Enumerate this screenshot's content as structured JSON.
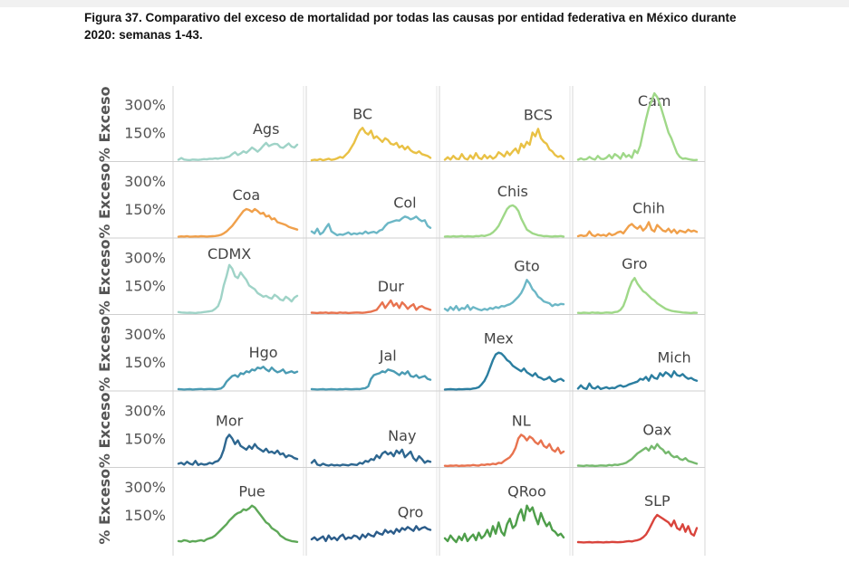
{
  "page": {
    "title": "Figura 37. Comparativo del exceso de mortalidad por todas las causas por entidad federativa en México durante\n2020: semanas 1-43."
  },
  "chart_data": {
    "type": "line",
    "layout": "small-multiples grid, 4 columns x 6 rows, shared axes",
    "ylabel": "% Exceso",
    "ytick_labels": [
      "300%",
      "150%"
    ],
    "yticks": [
      300,
      150
    ],
    "ylim": [
      0,
      380
    ],
    "xlim": [
      1,
      43
    ],
    "panels": [
      {
        "name": "Ags",
        "color": "#9fd3c7",
        "values": [
          5,
          14,
          6,
          4,
          3,
          6,
          5,
          4,
          6,
          8,
          7,
          10,
          9,
          12,
          10,
          14,
          13,
          18,
          22,
          35,
          45,
          30,
          38,
          50,
          42,
          55,
          70,
          60,
          48,
          62,
          80,
          95,
          78,
          85,
          90,
          88,
          72,
          68,
          80,
          92,
          75,
          70,
          85
        ]
      },
      {
        "name": "BC",
        "color": "#e9c145",
        "values": [
          2,
          5,
          3,
          8,
          2,
          6,
          10,
          4,
          7,
          12,
          20,
          15,
          30,
          45,
          70,
          95,
          130,
          160,
          175,
          150,
          140,
          160,
          120,
          130,
          115,
          100,
          120,
          110,
          90,
          85,
          95,
          70,
          80,
          60,
          75,
          55,
          45,
          40,
          50,
          35,
          30,
          25,
          15
        ]
      },
      {
        "name": "BCS",
        "color": "#e9c145",
        "values": [
          5,
          18,
          6,
          25,
          10,
          8,
          35,
          12,
          6,
          28,
          10,
          40,
          15,
          8,
          30,
          12,
          25,
          10,
          20,
          45,
          35,
          22,
          48,
          30,
          50,
          65,
          40,
          90,
          70,
          100,
          85,
          150,
          130,
          170,
          120,
          100,
          90,
          60,
          50,
          30,
          20,
          25,
          10
        ]
      },
      {
        "name": "Cam",
        "color": "#9fd888",
        "values": [
          5,
          12,
          6,
          8,
          20,
          10,
          6,
          25,
          10,
          8,
          15,
          30,
          12,
          35,
          25,
          10,
          40,
          20,
          30,
          15,
          55,
          40,
          80,
          150,
          220,
          280,
          320,
          360,
          340,
          300,
          250,
          200,
          150,
          120,
          80,
          40,
          20,
          10,
          12,
          8,
          5,
          3,
          4
        ]
      },
      {
        "name": "Coa",
        "color": "#f0a04b",
        "values": [
          2,
          4,
          3,
          5,
          2,
          3,
          4,
          3,
          5,
          4,
          3,
          4,
          5,
          6,
          8,
          12,
          20,
          30,
          45,
          60,
          80,
          100,
          120,
          140,
          150,
          145,
          135,
          150,
          140,
          125,
          130,
          110,
          115,
          95,
          100,
          80,
          75,
          70,
          65,
          55,
          50,
          45,
          40
        ]
      },
      {
        "name": "Col",
        "color": "#6cb7c6",
        "values": [
          30,
          20,
          45,
          15,
          25,
          50,
          70,
          30,
          20,
          10,
          15,
          12,
          18,
          25,
          14,
          20,
          16,
          22,
          18,
          30,
          20,
          25,
          28,
          22,
          35,
          40,
          60,
          75,
          80,
          85,
          90,
          88,
          100,
          110,
          105,
          95,
          100,
          110,
          95,
          85,
          90,
          60,
          50
        ]
      },
      {
        "name": "Chis",
        "color": "#9fd888",
        "values": [
          3,
          4,
          2,
          5,
          3,
          4,
          6,
          3,
          5,
          4,
          3,
          6,
          5,
          8,
          6,
          10,
          15,
          25,
          40,
          60,
          90,
          120,
          150,
          165,
          170,
          160,
          140,
          100,
          70,
          40,
          30,
          20,
          15,
          10,
          8,
          5,
          6,
          4,
          3,
          5,
          4,
          6,
          3
        ]
      },
      {
        "name": "Chih",
        "color": "#f0a04b",
        "values": [
          5,
          10,
          6,
          8,
          30,
          10,
          5,
          15,
          8,
          12,
          6,
          20,
          10,
          15,
          25,
          30,
          20,
          40,
          60,
          70,
          55,
          45,
          60,
          35,
          50,
          80,
          40,
          30,
          65,
          50,
          35,
          30,
          45,
          25,
          40,
          20,
          35,
          30,
          25,
          40,
          30,
          35,
          28
        ]
      },
      {
        "name": "CDMX",
        "color": "#9fd3c7",
        "values": [
          8,
          6,
          5,
          4,
          5,
          4,
          3,
          5,
          6,
          8,
          10,
          12,
          15,
          25,
          40,
          80,
          150,
          200,
          260,
          240,
          200,
          190,
          220,
          200,
          180,
          150,
          140,
          130,
          110,
          100,
          90,
          95,
          85,
          80,
          100,
          90,
          75,
          70,
          90,
          80,
          65,
          85,
          95
        ]
      },
      {
        "name": "Dur",
        "color": "#e8734f",
        "values": [
          5,
          4,
          3,
          5,
          4,
          6,
          3,
          5,
          4,
          3,
          6,
          4,
          5,
          3,
          4,
          5,
          6,
          5,
          4,
          6,
          8,
          10,
          15,
          20,
          40,
          60,
          30,
          50,
          70,
          40,
          55,
          30,
          60,
          45,
          25,
          40,
          50,
          20,
          35,
          40,
          30,
          25,
          20
        ]
      },
      {
        "name": "Gto",
        "color": "#6cb7c6",
        "values": [
          25,
          15,
          35,
          20,
          40,
          18,
          30,
          25,
          45,
          20,
          35,
          28,
          22,
          18,
          25,
          20,
          30,
          25,
          35,
          30,
          40,
          38,
          45,
          50,
          60,
          75,
          90,
          110,
          140,
          180,
          160,
          130,
          115,
          90,
          80,
          65,
          60,
          55,
          40,
          50,
          45,
          52,
          50
        ]
      },
      {
        "name": "Gro",
        "color": "#9fd888",
        "values": [
          4,
          3,
          5,
          4,
          3,
          6,
          4,
          5,
          3,
          4,
          6,
          5,
          4,
          8,
          10,
          20,
          40,
          80,
          130,
          170,
          190,
          160,
          140,
          120,
          110,
          95,
          80,
          70,
          55,
          45,
          35,
          25,
          20,
          15,
          12,
          10,
          8,
          6,
          5,
          4,
          3,
          5,
          4
        ]
      },
      {
        "name": "Hgo",
        "color": "#4a9bb3",
        "values": [
          5,
          4,
          3,
          4,
          5,
          3,
          4,
          5,
          6,
          4,
          5,
          6,
          5,
          4,
          6,
          8,
          20,
          45,
          60,
          75,
          80,
          70,
          90,
          85,
          100,
          95,
          110,
          105,
          120,
          115,
          125,
          110,
          100,
          120,
          105,
          95,
          100,
          110,
          90,
          95,
          100,
          92,
          98
        ]
      },
      {
        "name": "Jal",
        "color": "#4a9bb3",
        "values": [
          5,
          4,
          3,
          4,
          5,
          3,
          4,
          5,
          4,
          3,
          5,
          4,
          6,
          5,
          4,
          5,
          6,
          5,
          8,
          10,
          20,
          60,
          80,
          85,
          90,
          100,
          95,
          110,
          105,
          100,
          90,
          80,
          95,
          85,
          100,
          75,
          70,
          80,
          65,
          70,
          75,
          60,
          55
        ]
      },
      {
        "name": "Mex",
        "color": "#2b7ea0",
        "values": [
          3,
          4,
          5,
          4,
          3,
          5,
          4,
          5,
          6,
          5,
          8,
          10,
          15,
          30,
          50,
          80,
          120,
          160,
          190,
          200,
          195,
          180,
          160,
          150,
          130,
          120,
          110,
          100,
          115,
          95,
          85,
          75,
          90,
          70,
          65,
          55,
          60,
          70,
          50,
          45,
          55,
          60,
          50
        ]
      },
      {
        "name": "Mich",
        "color": "#2b7ea0",
        "values": [
          8,
          25,
          10,
          6,
          35,
          12,
          8,
          20,
          6,
          10,
          15,
          8,
          12,
          10,
          20,
          25,
          18,
          22,
          30,
          35,
          40,
          45,
          60,
          55,
          70,
          50,
          80,
          65,
          60,
          90,
          75,
          95,
          85,
          70,
          100,
          80,
          75,
          85,
          70,
          60,
          65,
          55,
          50
        ]
      },
      {
        "name": "Mor",
        "color": "#2e6790",
        "values": [
          15,
          20,
          10,
          25,
          15,
          10,
          30,
          8,
          15,
          10,
          12,
          20,
          15,
          25,
          30,
          50,
          90,
          150,
          170,
          150,
          120,
          140,
          110,
          100,
          90,
          110,
          95,
          120,
          100,
          90,
          80,
          95,
          75,
          80,
          70,
          85,
          65,
          70,
          50,
          60,
          55,
          45,
          40
        ]
      },
      {
        "name": "Nay",
        "color": "#2e6790",
        "values": [
          20,
          35,
          10,
          6,
          15,
          8,
          5,
          10,
          6,
          8,
          5,
          10,
          8,
          6,
          12,
          10,
          8,
          20,
          15,
          30,
          25,
          40,
          35,
          60,
          45,
          70,
          80,
          65,
          75,
          55,
          85,
          70,
          90,
          50,
          65,
          80,
          45,
          30,
          55,
          40,
          20,
          30,
          25
        ]
      },
      {
        "name": "NL",
        "color": "#e8734f",
        "values": [
          4,
          3,
          5,
          4,
          6,
          3,
          5,
          4,
          6,
          5,
          8,
          6,
          5,
          10,
          8,
          12,
          10,
          15,
          12,
          20,
          18,
          30,
          40,
          50,
          70,
          100,
          150,
          170,
          160,
          140,
          160,
          150,
          130,
          120,
          140,
          110,
          100,
          120,
          90,
          80,
          100,
          70,
          80
        ]
      },
      {
        "name": "Oax",
        "color": "#76b96e",
        "values": [
          5,
          4,
          3,
          6,
          4,
          5,
          3,
          4,
          6,
          5,
          4,
          8,
          6,
          10,
          8,
          12,
          15,
          20,
          30,
          40,
          55,
          70,
          80,
          90,
          100,
          85,
          110,
          95,
          120,
          100,
          90,
          70,
          80,
          60,
          50,
          55,
          40,
          35,
          45,
          30,
          25,
          20,
          15
        ]
      },
      {
        "name": "Pue",
        "color": "#5ea858",
        "values": [
          10,
          8,
          15,
          12,
          6,
          10,
          8,
          12,
          15,
          10,
          20,
          25,
          30,
          40,
          55,
          70,
          85,
          100,
          120,
          135,
          150,
          160,
          165,
          180,
          175,
          185,
          200,
          190,
          170,
          150,
          130,
          110,
          100,
          80,
          70,
          60,
          40,
          30,
          20,
          15,
          10,
          8,
          6
        ]
      },
      {
        "name": "Qro",
        "color": "#2b5c8a",
        "values": [
          20,
          30,
          15,
          25,
          35,
          10,
          40,
          20,
          30,
          15,
          35,
          45,
          20,
          30,
          25,
          40,
          35,
          20,
          45,
          30,
          50,
          40,
          35,
          60,
          50,
          45,
          70,
          55,
          65,
          50,
          75,
          60,
          80,
          70,
          85,
          75,
          65,
          90,
          70,
          80,
          85,
          75,
          70
        ]
      },
      {
        "name": "QRoo",
        "color": "#4e9e4a",
        "values": [
          25,
          10,
          40,
          20,
          5,
          35,
          15,
          50,
          10,
          30,
          45,
          15,
          55,
          25,
          40,
          70,
          35,
          90,
          50,
          110,
          60,
          40,
          100,
          130,
          80,
          95,
          150,
          180,
          120,
          200,
          170,
          190,
          140,
          100,
          160,
          120,
          90,
          110,
          70,
          60,
          40,
          50,
          30
        ]
      },
      {
        "name": "SLP",
        "color": "#d9443c",
        "values": [
          5,
          4,
          3,
          4,
          5,
          3,
          4,
          5,
          4,
          3,
          5,
          4,
          6,
          5,
          4,
          5,
          6,
          8,
          10,
          8,
          12,
          15,
          20,
          30,
          45,
          70,
          100,
          130,
          150,
          140,
          130,
          120,
          110,
          90,
          120,
          80,
          70,
          100,
          60,
          90,
          50,
          40,
          80
        ]
      }
    ]
  }
}
